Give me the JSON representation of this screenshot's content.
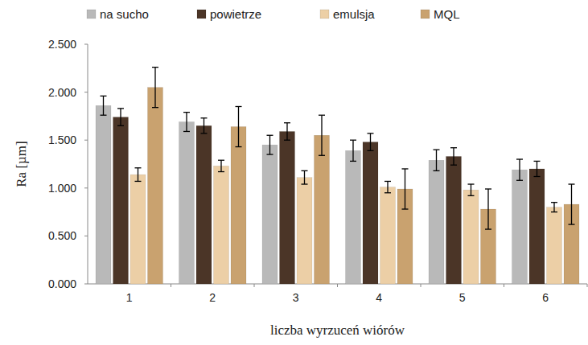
{
  "chart_data": {
    "type": "bar",
    "x_label": "liczba wyrzuceń wiórów",
    "y_label": "Ra [µm]",
    "categories": [
      "1",
      "2",
      "3",
      "4",
      "5",
      "6"
    ],
    "series": [
      {
        "name": "na sucho",
        "color": "#b9b9b9",
        "values": [
          1.86,
          1.69,
          1.45,
          1.39,
          1.29,
          1.19
        ],
        "errors": [
          0.1,
          0.1,
          0.1,
          0.11,
          0.11,
          0.11
        ]
      },
      {
        "name": "powietrze",
        "color": "#4b3527",
        "values": [
          1.74,
          1.65,
          1.59,
          1.48,
          1.33,
          1.2
        ],
        "errors": [
          0.09,
          0.08,
          0.09,
          0.09,
          0.09,
          0.08
        ]
      },
      {
        "name": "emulsja",
        "color": "#eccfa6",
        "values": [
          1.14,
          1.23,
          1.11,
          1.01,
          0.98,
          0.8
        ],
        "errors": [
          0.07,
          0.06,
          0.07,
          0.06,
          0.06,
          0.05
        ]
      },
      {
        "name": "MQL",
        "color": "#c9a26f",
        "values": [
          2.05,
          1.64,
          1.55,
          0.99,
          0.78,
          0.83
        ],
        "errors": [
          0.21,
          0.21,
          0.21,
          0.21,
          0.21,
          0.21
        ]
      }
    ],
    "ylim": [
      0,
      2.5
    ],
    "yticks": [
      {
        "value": 0,
        "label": "0.000"
      },
      {
        "value": 0.5,
        "label": "0.500"
      },
      {
        "value": 1,
        "label": "1.000"
      },
      {
        "value": 1.5,
        "label": "1.500"
      },
      {
        "value": 2,
        "label": "2.000"
      },
      {
        "value": 2.5,
        "label": "2.500"
      }
    ],
    "legend": "top",
    "grid": false
  }
}
